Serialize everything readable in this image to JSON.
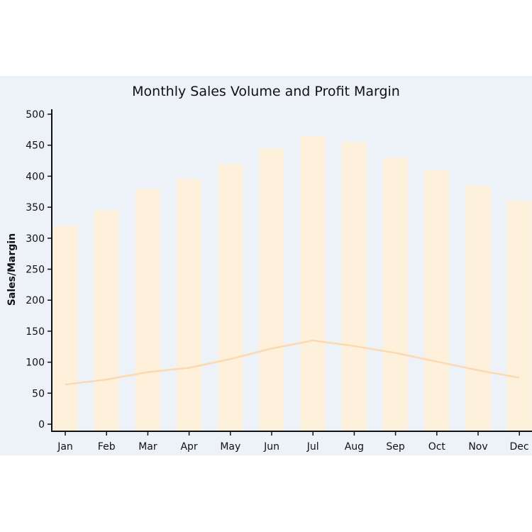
{
  "chart_data": {
    "type": "bar",
    "title": "Monthly Sales Volume and Profit Margin",
    "xlabel": "",
    "ylabel": "Sales/Margin",
    "ylim": [
      0,
      500
    ],
    "yticks": [
      0,
      50,
      100,
      150,
      200,
      250,
      300,
      350,
      400,
      450,
      500
    ],
    "categories": [
      "Jan",
      "Feb",
      "Mar",
      "Apr",
      "May",
      "Jun",
      "Jul",
      "Aug",
      "Sep",
      "Oct",
      "Nov",
      "Dec"
    ],
    "series": [
      {
        "name": "Sales Volume",
        "kind": "bar",
        "color": "#fdf1dc",
        "values": [
          320,
          345,
          380,
          395,
          420,
          445,
          465,
          455,
          430,
          410,
          385,
          360
        ]
      },
      {
        "name": "Profit Margin",
        "kind": "line",
        "color": "#fcd9ae",
        "values": [
          64,
          72,
          84,
          91,
          105,
          122,
          135,
          126,
          115,
          101,
          87,
          75
        ]
      }
    ],
    "grid": false,
    "background": "#edf1f8"
  }
}
